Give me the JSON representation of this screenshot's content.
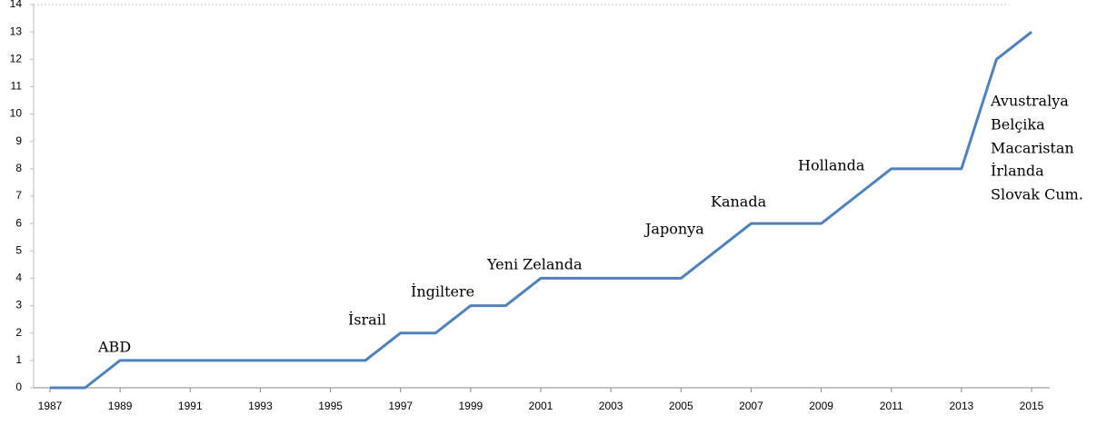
{
  "chart_data": {
    "type": "line",
    "x": [
      1987,
      1988,
      1989,
      1990,
      1991,
      1992,
      1993,
      1994,
      1995,
      1996,
      1997,
      1998,
      1999,
      2000,
      2001,
      2002,
      2003,
      2004,
      2005,
      2006,
      2007,
      2008,
      2009,
      2010,
      2011,
      2012,
      2013,
      2014,
      2015
    ],
    "series": [
      {
        "color": "#4f81bd",
        "values": [
          0,
          0,
          1,
          1,
          1,
          1,
          1,
          1,
          1,
          1,
          2,
          2,
          3,
          3,
          4,
          4,
          4,
          4,
          4,
          5,
          6,
          6,
          6,
          7,
          8,
          8,
          8,
          12,
          13
        ]
      }
    ],
    "xlim": [
      1987,
      2015
    ],
    "xticks": [
      1987,
      1989,
      1991,
      1993,
      1995,
      1997,
      1999,
      2001,
      2003,
      2005,
      2007,
      2009,
      2011,
      2013,
      2015
    ],
    "ylim": [
      0,
      14
    ],
    "yticks": [
      0,
      1,
      2,
      3,
      4,
      5,
      6,
      7,
      8,
      9,
      10,
      11,
      12,
      13,
      14
    ],
    "grid": false,
    "annotations": [
      "ABD",
      "İsrail",
      "İngiltere",
      "Yeni Zelanda",
      "Japonya",
      "Kanada",
      "Hollanda",
      "Avustralya",
      "Belçika",
      "Macaristan",
      "İrlanda",
      "Slovak Cum."
    ]
  }
}
